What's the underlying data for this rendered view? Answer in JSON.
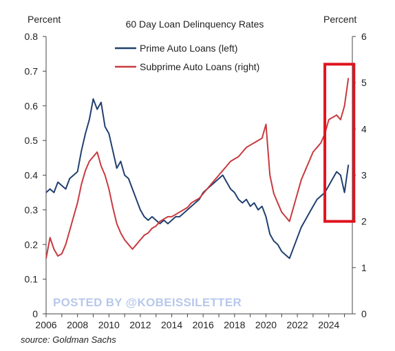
{
  "chart_data": {
    "type": "line",
    "title": "60 Day Loan Delinquency Rates",
    "y_left_label": "Percent",
    "y_right_label": "Percent",
    "source": "source: Goldman Sachs",
    "watermark": "POSTED BY @KOBEISSILETTER",
    "x_range": [
      2006,
      2025.5
    ],
    "x_ticks": [
      "2006",
      "2008",
      "2010",
      "2012",
      "2014",
      "2016",
      "2018",
      "2020",
      "2022",
      "2024"
    ],
    "y_left_range": [
      0,
      0.8
    ],
    "y_left_ticks": [
      "0",
      "0.1",
      "0.2",
      "0.3",
      "0.4",
      "0.5",
      "0.6",
      "0.7",
      "0.8"
    ],
    "y_right_range": [
      0,
      6
    ],
    "y_right_ticks": [
      "0",
      "1",
      "2",
      "3",
      "4",
      "5",
      "6"
    ],
    "legend_placement": "top-center",
    "grid": false,
    "series": [
      {
        "name": "Prime Auto Loans (left)",
        "axis": "left",
        "color": "#1f3f6e",
        "points": [
          [
            2006.0,
            0.35
          ],
          [
            2006.25,
            0.36
          ],
          [
            2006.5,
            0.35
          ],
          [
            2006.75,
            0.38
          ],
          [
            2007.0,
            0.37
          ],
          [
            2007.25,
            0.36
          ],
          [
            2007.5,
            0.39
          ],
          [
            2007.75,
            0.4
          ],
          [
            2008.0,
            0.41
          ],
          [
            2008.25,
            0.47
          ],
          [
            2008.5,
            0.52
          ],
          [
            2008.75,
            0.56
          ],
          [
            2009.0,
            0.62
          ],
          [
            2009.25,
            0.59
          ],
          [
            2009.5,
            0.61
          ],
          [
            2009.75,
            0.54
          ],
          [
            2010.0,
            0.52
          ],
          [
            2010.25,
            0.47
          ],
          [
            2010.5,
            0.42
          ],
          [
            2010.75,
            0.44
          ],
          [
            2011.0,
            0.4
          ],
          [
            2011.25,
            0.39
          ],
          [
            2011.5,
            0.36
          ],
          [
            2011.75,
            0.33
          ],
          [
            2012.0,
            0.3
          ],
          [
            2012.25,
            0.28
          ],
          [
            2012.5,
            0.27
          ],
          [
            2012.75,
            0.28
          ],
          [
            2013.0,
            0.27
          ],
          [
            2013.25,
            0.26
          ],
          [
            2013.5,
            0.27
          ],
          [
            2013.75,
            0.26
          ],
          [
            2014.0,
            0.27
          ],
          [
            2014.25,
            0.28
          ],
          [
            2014.5,
            0.28
          ],
          [
            2014.75,
            0.29
          ],
          [
            2015.0,
            0.3
          ],
          [
            2015.25,
            0.31
          ],
          [
            2015.5,
            0.32
          ],
          [
            2015.75,
            0.33
          ],
          [
            2016.0,
            0.35
          ],
          [
            2016.25,
            0.36
          ],
          [
            2016.5,
            0.37
          ],
          [
            2016.75,
            0.38
          ],
          [
            2017.0,
            0.39
          ],
          [
            2017.25,
            0.4
          ],
          [
            2017.5,
            0.38
          ],
          [
            2017.75,
            0.36
          ],
          [
            2018.0,
            0.35
          ],
          [
            2018.25,
            0.33
          ],
          [
            2018.5,
            0.32
          ],
          [
            2018.75,
            0.33
          ],
          [
            2019.0,
            0.31
          ],
          [
            2019.25,
            0.32
          ],
          [
            2019.5,
            0.3
          ],
          [
            2019.75,
            0.31
          ],
          [
            2020.0,
            0.28
          ],
          [
            2020.25,
            0.23
          ],
          [
            2020.5,
            0.21
          ],
          [
            2020.75,
            0.2
          ],
          [
            2021.0,
            0.18
          ],
          [
            2021.25,
            0.17
          ],
          [
            2021.5,
            0.16
          ],
          [
            2021.75,
            0.19
          ],
          [
            2022.0,
            0.22
          ],
          [
            2022.25,
            0.25
          ],
          [
            2022.5,
            0.27
          ],
          [
            2022.75,
            0.29
          ],
          [
            2023.0,
            0.31
          ],
          [
            2023.25,
            0.33
          ],
          [
            2023.5,
            0.34
          ],
          [
            2023.75,
            0.35
          ],
          [
            2024.0,
            0.37
          ],
          [
            2024.25,
            0.39
          ],
          [
            2024.5,
            0.41
          ],
          [
            2024.75,
            0.4
          ],
          [
            2025.0,
            0.35
          ],
          [
            2025.25,
            0.43
          ]
        ]
      },
      {
        "name": "Subprime Auto Loans (right)",
        "axis": "right",
        "color": "#c8393e",
        "points": [
          [
            2006.0,
            1.2
          ],
          [
            2006.25,
            1.65
          ],
          [
            2006.5,
            1.4
          ],
          [
            2006.75,
            1.25
          ],
          [
            2007.0,
            1.3
          ],
          [
            2007.25,
            1.5
          ],
          [
            2007.5,
            1.8
          ],
          [
            2007.75,
            2.1
          ],
          [
            2008.0,
            2.4
          ],
          [
            2008.25,
            2.8
          ],
          [
            2008.5,
            3.1
          ],
          [
            2008.75,
            3.3
          ],
          [
            2009.0,
            3.4
          ],
          [
            2009.25,
            3.5
          ],
          [
            2009.5,
            3.2
          ],
          [
            2009.75,
            3.0
          ],
          [
            2010.0,
            2.7
          ],
          [
            2010.25,
            2.3
          ],
          [
            2010.5,
            1.95
          ],
          [
            2010.75,
            1.75
          ],
          [
            2011.0,
            1.6
          ],
          [
            2011.25,
            1.5
          ],
          [
            2011.5,
            1.4
          ],
          [
            2011.75,
            1.5
          ],
          [
            2012.0,
            1.6
          ],
          [
            2012.25,
            1.7
          ],
          [
            2012.5,
            1.75
          ],
          [
            2012.75,
            1.85
          ],
          [
            2013.0,
            1.9
          ],
          [
            2013.25,
            2.0
          ],
          [
            2013.5,
            2.05
          ],
          [
            2013.75,
            2.1
          ],
          [
            2014.0,
            2.1
          ],
          [
            2014.25,
            2.15
          ],
          [
            2014.5,
            2.2
          ],
          [
            2014.75,
            2.25
          ],
          [
            2015.0,
            2.3
          ],
          [
            2015.25,
            2.4
          ],
          [
            2015.5,
            2.45
          ],
          [
            2015.75,
            2.5
          ],
          [
            2016.0,
            2.6
          ],
          [
            2016.25,
            2.7
          ],
          [
            2016.5,
            2.8
          ],
          [
            2016.75,
            2.9
          ],
          [
            2017.0,
            3.0
          ],
          [
            2017.25,
            3.1
          ],
          [
            2017.5,
            3.2
          ],
          [
            2017.75,
            3.3
          ],
          [
            2018.0,
            3.35
          ],
          [
            2018.25,
            3.4
          ],
          [
            2018.5,
            3.5
          ],
          [
            2018.75,
            3.6
          ],
          [
            2019.0,
            3.65
          ],
          [
            2019.25,
            3.7
          ],
          [
            2019.5,
            3.75
          ],
          [
            2019.75,
            3.8
          ],
          [
            2020.0,
            4.1
          ],
          [
            2020.25,
            3.0
          ],
          [
            2020.5,
            2.6
          ],
          [
            2020.75,
            2.4
          ],
          [
            2021.0,
            2.2
          ],
          [
            2021.25,
            2.1
          ],
          [
            2021.5,
            2.0
          ],
          [
            2021.75,
            2.3
          ],
          [
            2022.0,
            2.6
          ],
          [
            2022.25,
            2.9
          ],
          [
            2022.5,
            3.1
          ],
          [
            2022.75,
            3.3
          ],
          [
            2023.0,
            3.5
          ],
          [
            2023.25,
            3.6
          ],
          [
            2023.5,
            3.7
          ],
          [
            2023.75,
            3.9
          ],
          [
            2024.0,
            4.2
          ],
          [
            2024.25,
            4.25
          ],
          [
            2024.5,
            4.3
          ],
          [
            2024.75,
            4.2
          ],
          [
            2025.0,
            4.5
          ],
          [
            2025.25,
            5.1
          ]
        ]
      }
    ],
    "highlight": {
      "color": "#e0141e",
      "x_range": [
        2023.75,
        2025.6
      ],
      "y_right_range": [
        2.0,
        5.4
      ]
    }
  }
}
